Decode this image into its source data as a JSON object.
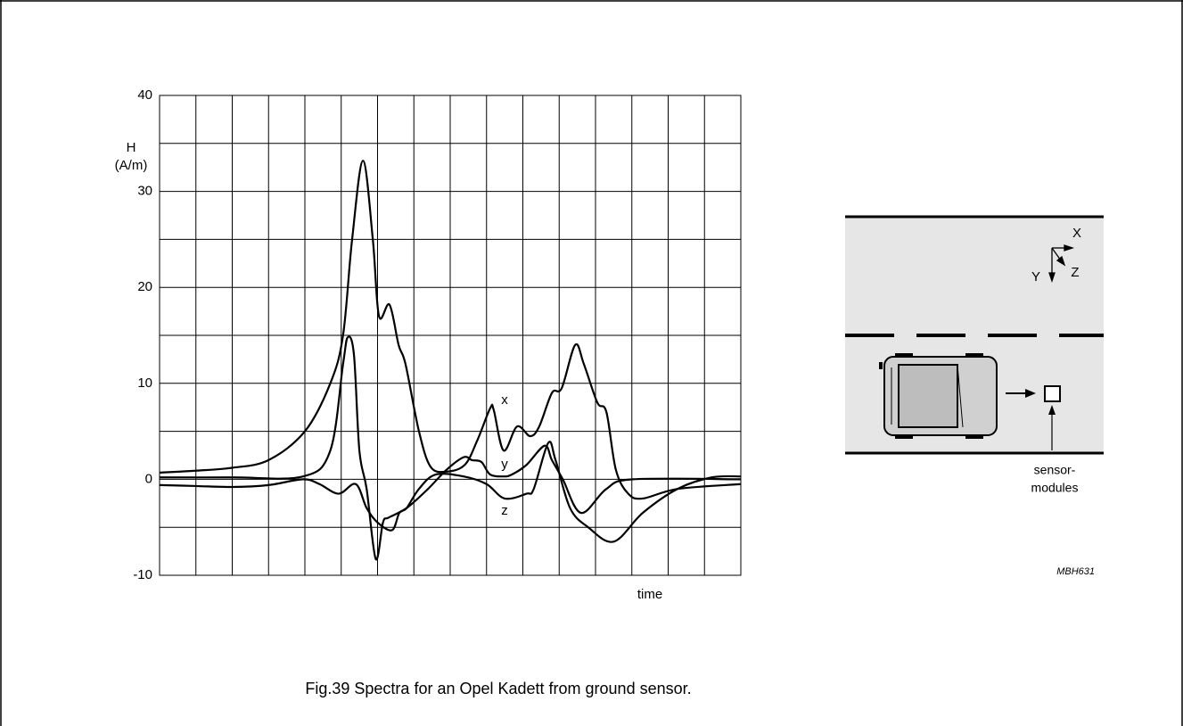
{
  "chart_data": {
    "type": "line",
    "ylabel": [
      "H",
      "(A/m)"
    ],
    "xlabel": "time",
    "xlim": [
      0,
      16
    ],
    "ylim": [
      -10,
      40
    ],
    "yticks": [
      -10,
      0,
      10,
      20,
      30,
      40
    ],
    "grid": true,
    "series": [
      {
        "name": "x",
        "color": "#000000",
        "x": [
          0,
          1,
          2,
          3,
          4,
          4.7,
          5.05,
          5.3,
          5.6,
          5.87,
          6.04,
          6.33,
          6.58,
          6.77,
          7.14,
          7.46,
          7.9,
          8.4,
          8.74,
          9.1,
          9.2,
          9.47,
          9.84,
          10.2,
          10.45,
          10.8,
          11.07,
          11.44,
          11.68,
          12.05,
          12.3,
          12.56,
          12.9,
          13.3,
          14.26,
          16
        ],
        "values": [
          0.7,
          0.9,
          1.2,
          2,
          5,
          10,
          15,
          25,
          33.2,
          25,
          17,
          18.2,
          14,
          12,
          5,
          1.3,
          0.8,
          1.5,
          4,
          7.4,
          7.2,
          3,
          5.5,
          4.5,
          5.5,
          9,
          9.5,
          14,
          12,
          8,
          7,
          1,
          -1.5,
          -2,
          -1,
          -0.5
        ]
      },
      {
        "name": "y",
        "color": "#000000",
        "x": [
          0,
          2,
          3.95,
          4.7,
          5.05,
          5.18,
          5.35,
          5.5,
          5.7,
          5.95,
          6.15,
          6.3,
          6.8,
          7.39,
          7.9,
          8.37,
          8.6,
          8.86,
          9.1,
          9.47,
          9.7,
          10.1,
          10.6,
          10.8,
          11.1,
          11.6,
          12.3,
          13.03,
          16
        ],
        "values": [
          0.2,
          0.2,
          0.3,
          3,
          12,
          14.8,
          13,
          3,
          -1,
          -8.3,
          -4.5,
          -4,
          -3,
          -1,
          1,
          2.3,
          2,
          1.8,
          0.5,
          0.3,
          0.5,
          1.5,
          3.5,
          2,
          0,
          -3.5,
          -1,
          0,
          0
        ]
      },
      {
        "name": "z",
        "color": "#000000",
        "x": [
          0,
          1,
          2,
          3,
          3.95,
          4.4,
          4.93,
          5.4,
          5.7,
          6.0,
          6.4,
          6.6,
          6.8,
          7.14,
          7.6,
          8.37,
          9.0,
          9.5,
          10.1,
          10.3,
          10.7,
          10.9,
          11.3,
          11.8,
          12.5,
          13.3,
          14.26,
          15.2,
          16
        ],
        "values": [
          -0.6,
          -0.7,
          -0.8,
          -0.6,
          0,
          -0.5,
          -1.5,
          -0.5,
          -3,
          -4.5,
          -5.3,
          -3.5,
          -3,
          -1,
          0.5,
          0.3,
          -0.5,
          -2,
          -1.5,
          -1,
          3.8,
          2,
          -3,
          -5,
          -6.5,
          -3.5,
          -1,
          0.2,
          0.3
        ]
      }
    ]
  },
  "diagram": {
    "axes": [
      "X",
      "Y",
      "Z"
    ],
    "label": [
      "sensor-",
      "modules"
    ],
    "code": "MBH631"
  },
  "caption": "Fig.39  Spectra for an Opel Kadett from ground sensor."
}
